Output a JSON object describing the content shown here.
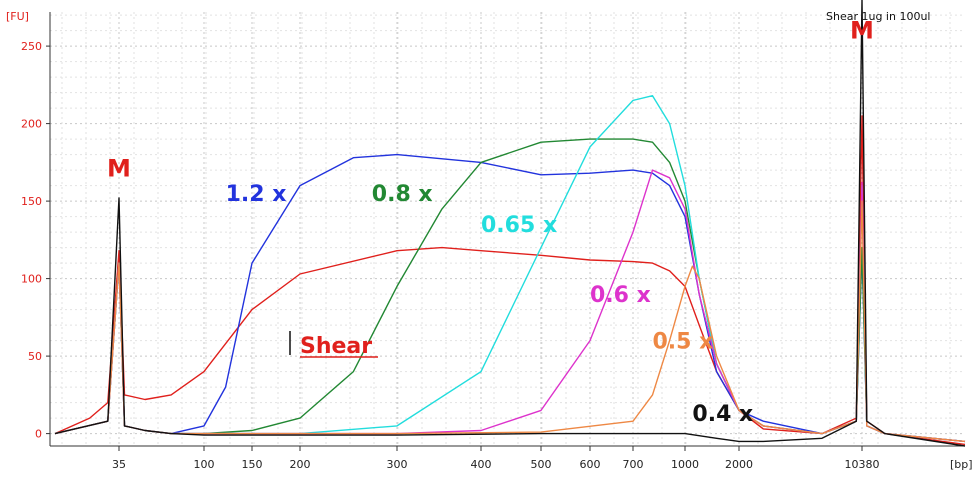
{
  "chart_data": {
    "type": "line",
    "title": "Shear 1ug in 100ul",
    "ylabel": "[FU]",
    "xlabel": "[bp]",
    "ylim": [
      -8,
      272
    ],
    "y_ticks": [
      0,
      50,
      100,
      150,
      200,
      250
    ],
    "x_ticks": [
      35,
      100,
      150,
      200,
      300,
      400,
      500,
      600,
      700,
      1000,
      2000,
      10380
    ],
    "x_tick_labels": [
      "35",
      "100",
      "150",
      "200",
      "300",
      "400",
      "500",
      "600",
      "700",
      "1000",
      "2000",
      "10380"
    ],
    "grid": true,
    "markers": [
      {
        "label": "M",
        "x": 35
      },
      {
        "label": "M",
        "x": 10380
      }
    ],
    "series": [
      {
        "name": "Shear",
        "color": "#e0201c",
        "label_x": 200,
        "label_y": 52,
        "points": [
          [
            25,
            0
          ],
          [
            30,
            10
          ],
          [
            33,
            20
          ],
          [
            35,
            118
          ],
          [
            36,
            25
          ],
          [
            40,
            22
          ],
          [
            60,
            25
          ],
          [
            100,
            40
          ],
          [
            150,
            80
          ],
          [
            200,
            103
          ],
          [
            300,
            118
          ],
          [
            350,
            120
          ],
          [
            400,
            118
          ],
          [
            500,
            115
          ],
          [
            600,
            112
          ],
          [
            700,
            111
          ],
          [
            800,
            110
          ],
          [
            900,
            105
          ],
          [
            1000,
            95
          ],
          [
            1200,
            70
          ],
          [
            1500,
            40
          ],
          [
            2000,
            15
          ],
          [
            3000,
            3
          ],
          [
            8000,
            0
          ],
          [
            10000,
            10
          ],
          [
            10380,
            205
          ],
          [
            10700,
            8
          ],
          [
            12000,
            0
          ],
          [
            20000,
            -7
          ]
        ]
      },
      {
        "name": "1.2 x",
        "color": "#2233dd",
        "label_x": 120,
        "label_y": 150,
        "points": [
          [
            25,
            0
          ],
          [
            33,
            8
          ],
          [
            35,
            110
          ],
          [
            36,
            5
          ],
          [
            40,
            2
          ],
          [
            60,
            0
          ],
          [
            100,
            5
          ],
          [
            120,
            30
          ],
          [
            150,
            110
          ],
          [
            200,
            160
          ],
          [
            250,
            178
          ],
          [
            300,
            180
          ],
          [
            400,
            175
          ],
          [
            500,
            167
          ],
          [
            600,
            168
          ],
          [
            700,
            170
          ],
          [
            800,
            168
          ],
          [
            900,
            160
          ],
          [
            1000,
            140
          ],
          [
            1200,
            90
          ],
          [
            1500,
            40
          ],
          [
            2000,
            15
          ],
          [
            3000,
            8
          ],
          [
            8000,
            0
          ],
          [
            10000,
            8
          ],
          [
            10380,
            118
          ],
          [
            10700,
            5
          ],
          [
            12000,
            0
          ],
          [
            20000,
            -5
          ]
        ]
      },
      {
        "name": "0.8 x",
        "color": "#228833",
        "label_x": 270,
        "label_y": 150,
        "points": [
          [
            25,
            0
          ],
          [
            33,
            8
          ],
          [
            35,
            110
          ],
          [
            36,
            5
          ],
          [
            40,
            2
          ],
          [
            60,
            0
          ],
          [
            100,
            0
          ],
          [
            150,
            2
          ],
          [
            200,
            10
          ],
          [
            250,
            40
          ],
          [
            300,
            95
          ],
          [
            350,
            145
          ],
          [
            400,
            175
          ],
          [
            500,
            188
          ],
          [
            600,
            190
          ],
          [
            700,
            190
          ],
          [
            800,
            188
          ],
          [
            900,
            175
          ],
          [
            1000,
            150
          ],
          [
            1200,
            100
          ],
          [
            1500,
            45
          ],
          [
            2000,
            15
          ],
          [
            3000,
            5
          ],
          [
            8000,
            0
          ],
          [
            10000,
            8
          ],
          [
            10380,
            120
          ],
          [
            10700,
            5
          ],
          [
            12000,
            0
          ],
          [
            20000,
            -5
          ]
        ]
      },
      {
        "name": "0.65 x",
        "color": "#22dddd",
        "label_x": 400,
        "label_y": 130,
        "points": [
          [
            25,
            0
          ],
          [
            33,
            8
          ],
          [
            35,
            110
          ],
          [
            36,
            5
          ],
          [
            40,
            2
          ],
          [
            60,
            0
          ],
          [
            100,
            0
          ],
          [
            200,
            0
          ],
          [
            300,
            5
          ],
          [
            400,
            40
          ],
          [
            500,
            120
          ],
          [
            600,
            185
          ],
          [
            700,
            215
          ],
          [
            800,
            218
          ],
          [
            900,
            200
          ],
          [
            1000,
            160
          ],
          [
            1200,
            100
          ],
          [
            1500,
            45
          ],
          [
            2000,
            15
          ],
          [
            3000,
            5
          ],
          [
            8000,
            0
          ],
          [
            10000,
            8
          ],
          [
            10380,
            160
          ],
          [
            10700,
            5
          ],
          [
            12000,
            0
          ],
          [
            20000,
            -5
          ]
        ]
      },
      {
        "name": "0.6 x",
        "color": "#dd33cc",
        "label_x": 600,
        "label_y": 85,
        "points": [
          [
            25,
            0
          ],
          [
            33,
            8
          ],
          [
            35,
            110
          ],
          [
            36,
            5
          ],
          [
            40,
            2
          ],
          [
            60,
            0
          ],
          [
            100,
            0
          ],
          [
            200,
            0
          ],
          [
            300,
            0
          ],
          [
            400,
            2
          ],
          [
            500,
            15
          ],
          [
            600,
            60
          ],
          [
            700,
            130
          ],
          [
            800,
            170
          ],
          [
            900,
            165
          ],
          [
            1000,
            145
          ],
          [
            1200,
            90
          ],
          [
            1500,
            45
          ],
          [
            2000,
            15
          ],
          [
            3000,
            5
          ],
          [
            8000,
            0
          ],
          [
            10000,
            8
          ],
          [
            10380,
            162
          ],
          [
            10700,
            5
          ],
          [
            12000,
            0
          ],
          [
            20000,
            -5
          ]
        ]
      },
      {
        "name": "0.5 x",
        "color": "#ee8844",
        "label_x": 800,
        "label_y": 55,
        "points": [
          [
            25,
            0
          ],
          [
            33,
            8
          ],
          [
            35,
            110
          ],
          [
            36,
            5
          ],
          [
            40,
            2
          ],
          [
            60,
            0
          ],
          [
            100,
            0
          ],
          [
            300,
            0
          ],
          [
            500,
            1
          ],
          [
            700,
            8
          ],
          [
            800,
            25
          ],
          [
            900,
            60
          ],
          [
            1000,
            95
          ],
          [
            1100,
            108
          ],
          [
            1200,
            100
          ],
          [
            1500,
            50
          ],
          [
            2000,
            15
          ],
          [
            3000,
            5
          ],
          [
            8000,
            0
          ],
          [
            10000,
            8
          ],
          [
            10380,
            150
          ],
          [
            10700,
            5
          ],
          [
            12000,
            0
          ],
          [
            20000,
            -5
          ]
        ]
      },
      {
        "name": "0.4 x",
        "color": "#111111",
        "label_x": 1100,
        "label_y": 8,
        "points": [
          [
            25,
            0
          ],
          [
            33,
            8
          ],
          [
            35,
            152
          ],
          [
            36,
            5
          ],
          [
            40,
            2
          ],
          [
            60,
            0
          ],
          [
            100,
            -1
          ],
          [
            300,
            -1
          ],
          [
            500,
            0
          ],
          [
            700,
            0
          ],
          [
            900,
            0
          ],
          [
            1000,
            0
          ],
          [
            1500,
            -3
          ],
          [
            2000,
            -5
          ],
          [
            3000,
            -5
          ],
          [
            8000,
            -3
          ],
          [
            10000,
            8
          ],
          [
            10380,
            280
          ],
          [
            10700,
            8
          ],
          [
            12000,
            0
          ],
          [
            20000,
            -8
          ]
        ]
      }
    ]
  }
}
